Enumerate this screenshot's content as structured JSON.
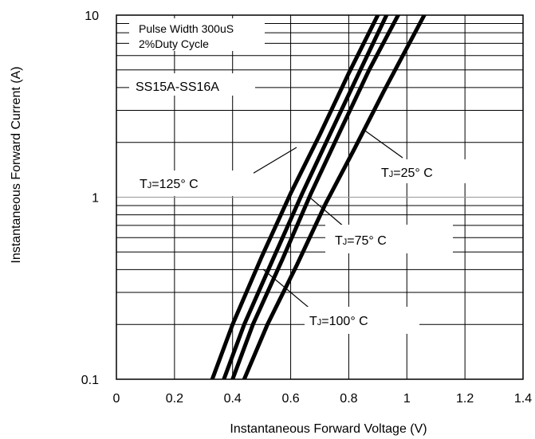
{
  "chart_data": {
    "type": "line",
    "title": "",
    "xlabel": "Instantaneous Forward Voltage (V)",
    "ylabel": "Instantaneous Forward Current (A)",
    "xlim": [
      0,
      1.4
    ],
    "ylim": [
      0.1,
      10
    ],
    "y_scale": "log",
    "grid": true,
    "x_ticks": [
      "0",
      "0.2",
      "0.4",
      "0.6",
      "0.8",
      "1",
      "1.2",
      "1.4"
    ],
    "y_ticks": [
      "0.1",
      "1",
      "10"
    ],
    "notes": [
      "Pulse Width 300uS",
      "2%Duty Cycle"
    ],
    "part_label": "SS15A-SS16A",
    "series": [
      {
        "name": "TJ=125° C",
        "x": [
          0.33,
          0.4,
          0.5,
          0.6,
          0.7,
          0.8,
          0.9
        ],
        "y": [
          0.1,
          0.2,
          0.47,
          1.05,
          2.2,
          4.8,
          10
        ]
      },
      {
        "name": "TJ=100° C",
        "x": [
          0.37,
          0.44,
          0.54,
          0.64,
          0.74,
          0.84,
          0.93
        ],
        "y": [
          0.1,
          0.2,
          0.46,
          1.05,
          2.3,
          5.0,
          10
        ]
      },
      {
        "name": "TJ=75° C",
        "x": [
          0.4,
          0.47,
          0.57,
          0.67,
          0.77,
          0.87,
          0.97
        ],
        "y": [
          0.1,
          0.2,
          0.45,
          1.05,
          2.3,
          5.0,
          10
        ]
      },
      {
        "name": "TJ=25° C",
        "x": [
          0.44,
          0.52,
          0.62,
          0.72,
          0.82,
          0.92,
          1.06
        ],
        "y": [
          0.1,
          0.2,
          0.42,
          0.92,
          1.85,
          3.8,
          10
        ]
      }
    ],
    "annotations": [
      {
        "prefix": "T",
        "sub": "J",
        "value": "=125° C"
      },
      {
        "prefix": "T",
        "sub": "J",
        "value": "=25° C"
      },
      {
        "prefix": "T",
        "sub": "J",
        "value": "=75° C"
      },
      {
        "prefix": "T",
        "sub": "J",
        "value": "=100° C"
      }
    ]
  }
}
